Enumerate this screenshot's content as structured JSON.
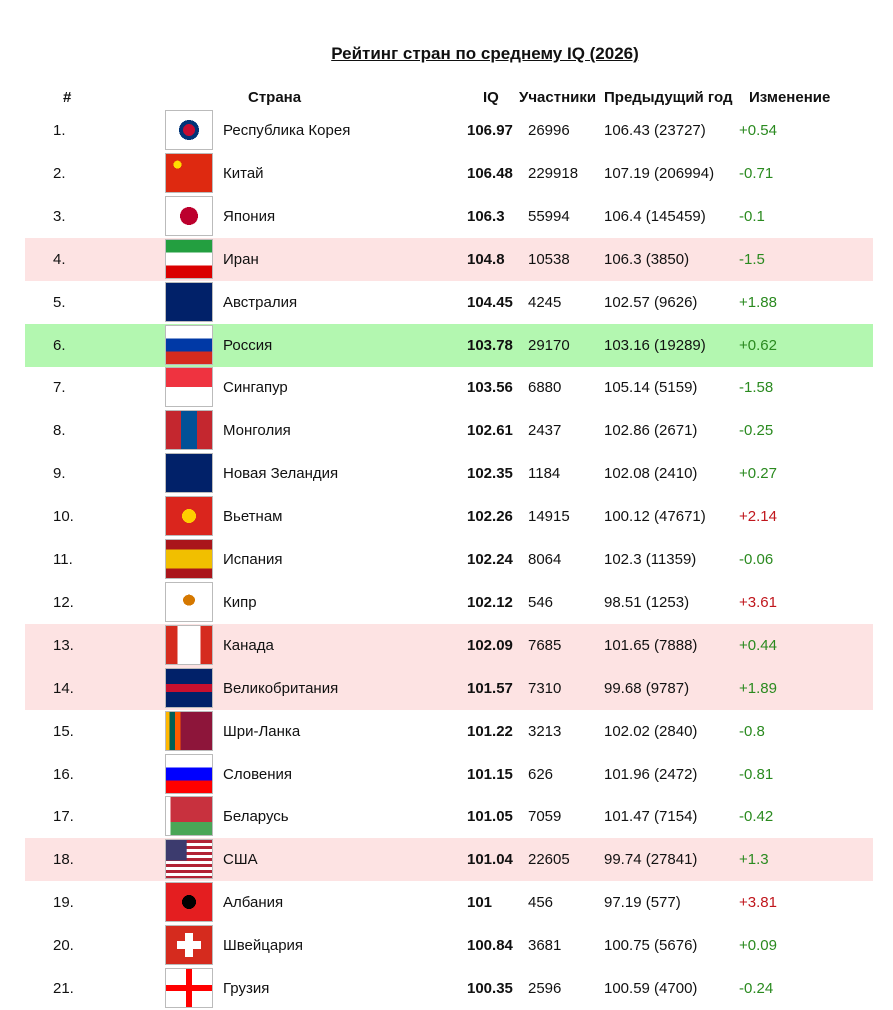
{
  "title": "Рейтинг стран по среднему IQ (2026)",
  "headers": {
    "rank": "#",
    "country": "Страна",
    "iq": "IQ",
    "participants": "Участники",
    "previous": "Предыдущий год",
    "change": "Изменение"
  },
  "colors": {
    "highlight_pink": "#fde3e3",
    "highlight_green": "#b3f7b0",
    "change_green": "#2a8a1f",
    "change_red": "#c0161c"
  },
  "rows": [
    {
      "rank": "1.",
      "country": "Республика Корея",
      "flag": "kr",
      "iq": "106.97",
      "participants": "26996",
      "previous": "106.43 (23727)",
      "change": "+0.54",
      "change_color": "green",
      "highlight": ""
    },
    {
      "rank": "2.",
      "country": "Китай",
      "flag": "cn",
      "iq": "106.48",
      "participants": "229918",
      "previous": "107.19 (206994)",
      "change": "-0.71",
      "change_color": "green",
      "highlight": ""
    },
    {
      "rank": "3.",
      "country": "Япония",
      "flag": "jp",
      "iq": "106.3",
      "participants": "55994",
      "previous": "106.4 (145459)",
      "change": "-0.1",
      "change_color": "green",
      "highlight": ""
    },
    {
      "rank": "4.",
      "country": "Иран",
      "flag": "ir",
      "iq": "104.8",
      "participants": "10538",
      "previous": "106.3 (3850)",
      "change": "-1.5",
      "change_color": "green",
      "highlight": "pink"
    },
    {
      "rank": "5.",
      "country": "Австралия",
      "flag": "au",
      "iq": "104.45",
      "participants": "4245",
      "previous": "102.57 (9626)",
      "change": "+1.88",
      "change_color": "green",
      "highlight": ""
    },
    {
      "rank": "6.",
      "country": "Россия",
      "flag": "ru",
      "iq": "103.78",
      "participants": "29170",
      "previous": "103.16 (19289)",
      "change": "+0.62",
      "change_color": "green",
      "highlight": "green"
    },
    {
      "rank": "7.",
      "country": "Сингапур",
      "flag": "sg",
      "iq": "103.56",
      "participants": "6880",
      "previous": "105.14 (5159)",
      "change": "-1.58",
      "change_color": "green",
      "highlight": ""
    },
    {
      "rank": "8.",
      "country": "Монголия",
      "flag": "mn",
      "iq": "102.61",
      "participants": "2437",
      "previous": "102.86 (2671)",
      "change": "-0.25",
      "change_color": "green",
      "highlight": ""
    },
    {
      "rank": "9.",
      "country": "Новая Зеландия",
      "flag": "nz",
      "iq": "102.35",
      "participants": "1184",
      "previous": "102.08 (2410)",
      "change": "+0.27",
      "change_color": "green",
      "highlight": ""
    },
    {
      "rank": "10.",
      "country": "Вьетнам",
      "flag": "vn",
      "iq": "102.26",
      "participants": "14915",
      "previous": "100.12 (47671)",
      "change": "+2.14",
      "change_color": "red",
      "highlight": ""
    },
    {
      "rank": "11.",
      "country": "Испания",
      "flag": "es",
      "iq": "102.24",
      "participants": "8064",
      "previous": "102.3 (11359)",
      "change": "-0.06",
      "change_color": "green",
      "highlight": ""
    },
    {
      "rank": "12.",
      "country": "Кипр",
      "flag": "cy",
      "iq": "102.12",
      "participants": "546",
      "previous": "98.51 (1253)",
      "change": "+3.61",
      "change_color": "red",
      "highlight": ""
    },
    {
      "rank": "13.",
      "country": "Канада",
      "flag": "ca",
      "iq": "102.09",
      "participants": "7685",
      "previous": "101.65 (7888)",
      "change": "+0.44",
      "change_color": "green",
      "highlight": "pink"
    },
    {
      "rank": "14.",
      "country": "Великобритания",
      "flag": "gb",
      "iq": "101.57",
      "participants": "7310",
      "previous": "99.68 (9787)",
      "change": "+1.89",
      "change_color": "green",
      "highlight": "pink"
    },
    {
      "rank": "15.",
      "country": "Шри-Ланка",
      "flag": "lk",
      "iq": "101.22",
      "participants": "3213",
      "previous": "102.02 (2840)",
      "change": "-0.8",
      "change_color": "green",
      "highlight": ""
    },
    {
      "rank": "16.",
      "country": "Словения",
      "flag": "si",
      "iq": "101.15",
      "participants": "626",
      "previous": "101.96 (2472)",
      "change": "-0.81",
      "change_color": "green",
      "highlight": ""
    },
    {
      "rank": "17.",
      "country": "Беларусь",
      "flag": "by",
      "iq": "101.05",
      "participants": "7059",
      "previous": "101.47 (7154)",
      "change": "-0.42",
      "change_color": "green",
      "highlight": ""
    },
    {
      "rank": "18.",
      "country": "США",
      "flag": "us",
      "iq": "101.04",
      "participants": "22605",
      "previous": "99.74 (27841)",
      "change": "+1.3",
      "change_color": "green",
      "highlight": "pink"
    },
    {
      "rank": "19.",
      "country": "Албания",
      "flag": "al",
      "iq": "101",
      "participants": "456",
      "previous": "97.19 (577)",
      "change": "+3.81",
      "change_color": "red",
      "highlight": ""
    },
    {
      "rank": "20.",
      "country": "Швейцария",
      "flag": "ch",
      "iq": "100.84",
      "participants": "3681",
      "previous": "100.75 (5676)",
      "change": "+0.09",
      "change_color": "green",
      "highlight": ""
    },
    {
      "rank": "21.",
      "country": "Грузия",
      "flag": "ge",
      "iq": "100.35",
      "participants": "2596",
      "previous": "100.59 (4700)",
      "change": "-0.24",
      "change_color": "green",
      "highlight": ""
    }
  ]
}
